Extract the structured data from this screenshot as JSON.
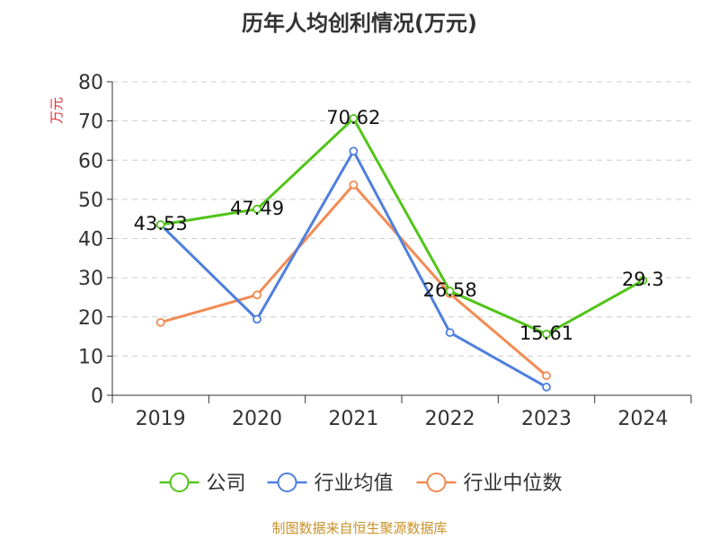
{
  "chart_data": {
    "type": "line",
    "title": "历年人均创利情况(万元)",
    "ylabel": "万元",
    "xlabel": "",
    "categories": [
      "2019",
      "2020",
      "2021",
      "2022",
      "2023",
      "2024"
    ],
    "ylim": [
      0,
      80
    ],
    "yticks": [
      0,
      10,
      20,
      30,
      40,
      50,
      60,
      70,
      80
    ],
    "grid": true,
    "legend_position": "bottom",
    "series": [
      {
        "name": "公司",
        "color": "#52c41a",
        "values": [
          43.53,
          47.49,
          70.62,
          26.58,
          15.61,
          29.3
        ],
        "labels": true
      },
      {
        "name": "行业均值",
        "color": "#4f7fde",
        "values": [
          43.53,
          19.4,
          62.3,
          16.0,
          2.1,
          null
        ],
        "labels": false
      },
      {
        "name": "行业中位数",
        "color": "#f28b54",
        "values": [
          18.6,
          25.6,
          53.7,
          25.9,
          5.0,
          null
        ],
        "labels": false
      }
    ]
  },
  "source": "制图数据来自恒生聚源数据库",
  "colors": {
    "title": "#333333",
    "ylabel": "#e03030",
    "source": "#c8922a",
    "grid": "#cccccc",
    "axis": "#333333"
  }
}
